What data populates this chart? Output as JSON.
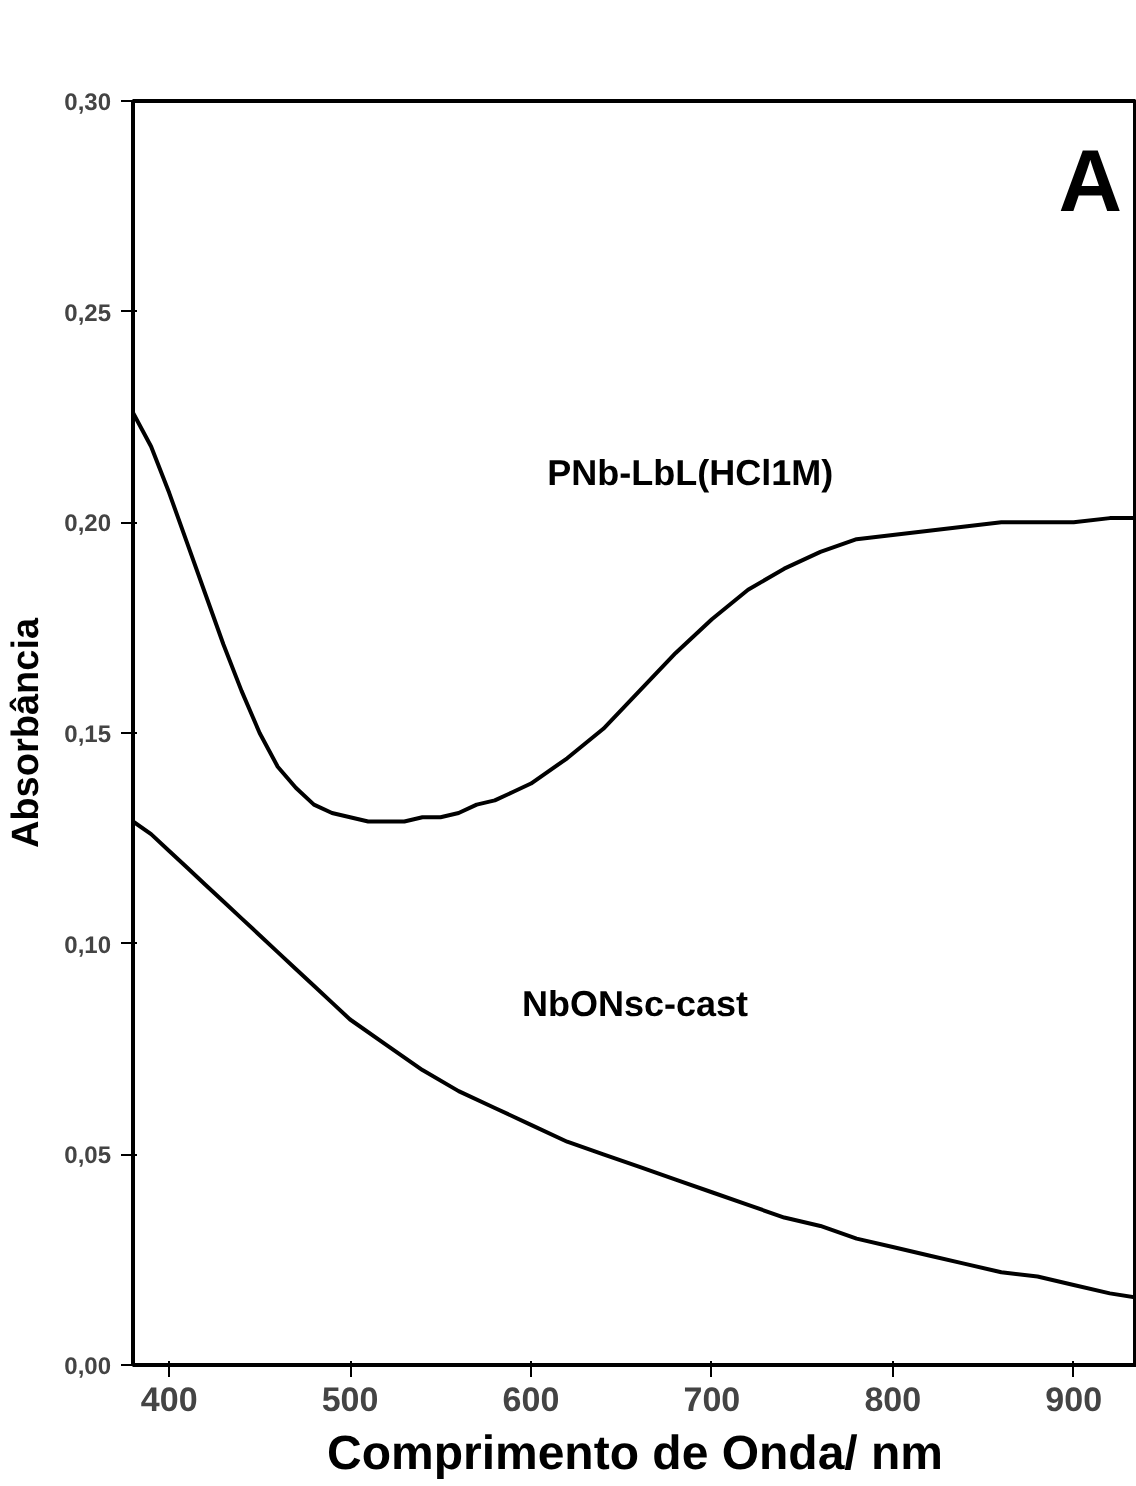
{
  "chart_data": {
    "type": "line",
    "xlabel": "Comprimento de Onda/ nm",
    "ylabel": "Absorbância",
    "xlim": [
      380,
      935
    ],
    "ylim": [
      0,
      0.3
    ],
    "xticks": [
      400,
      500,
      600,
      700,
      800,
      900
    ],
    "yticks": [
      {
        "value": 0,
        "label": "0,00"
      },
      {
        "value": 0.05,
        "label": "0,05"
      },
      {
        "value": 0.1,
        "label": "0,10"
      },
      {
        "value": 0.15,
        "label": "0,15"
      },
      {
        "value": 0.2,
        "label": "0,20"
      },
      {
        "value": 0.25,
        "label": "0,25"
      },
      {
        "value": 0.3,
        "label": "0,30"
      }
    ],
    "grid": false,
    "line_style": "solid",
    "marker": "none",
    "annotations": [
      "A",
      "PNb-LbL(HCl1M)",
      "NbONsc-cast"
    ],
    "series": [
      {
        "color": "#000000",
        "x": [
          380,
          390,
          400,
          410,
          420,
          430,
          440,
          450,
          460,
          470,
          480,
          490,
          500,
          510,
          520,
          530,
          540,
          550,
          560,
          570,
          580,
          590,
          600,
          620,
          640,
          660,
          680,
          700,
          720,
          740,
          760,
          780,
          800,
          820,
          840,
          860,
          880,
          900,
          920,
          935
        ],
        "values": [
          0.226,
          0.218,
          0.207,
          0.195,
          0.183,
          0.171,
          0.16,
          0.15,
          0.142,
          0.137,
          0.133,
          0.131,
          0.13,
          0.129,
          0.129,
          0.129,
          0.13,
          0.13,
          0.131,
          0.133,
          0.134,
          0.136,
          0.138,
          0.144,
          0.151,
          0.16,
          0.169,
          0.177,
          0.184,
          0.189,
          0.193,
          0.196,
          0.197,
          0.198,
          0.199,
          0.2,
          0.2,
          0.2,
          0.201,
          0.201
        ]
      },
      {
        "color": "#000000",
        "x": [
          380,
          390,
          400,
          410,
          420,
          430,
          440,
          450,
          460,
          470,
          480,
          490,
          500,
          520,
          540,
          560,
          580,
          600,
          620,
          640,
          660,
          680,
          700,
          720,
          740,
          760,
          780,
          800,
          820,
          840,
          860,
          880,
          900,
          920,
          935
        ],
        "values": [
          0.129,
          0.126,
          0.122,
          0.118,
          0.114,
          0.11,
          0.106,
          0.102,
          0.098,
          0.094,
          0.09,
          0.086,
          0.082,
          0.076,
          0.07,
          0.065,
          0.061,
          0.057,
          0.053,
          0.05,
          0.047,
          0.044,
          0.041,
          0.038,
          0.035,
          0.033,
          0.03,
          0.028,
          0.026,
          0.024,
          0.022,
          0.021,
          0.019,
          0.017,
          0.016
        ]
      }
    ]
  }
}
